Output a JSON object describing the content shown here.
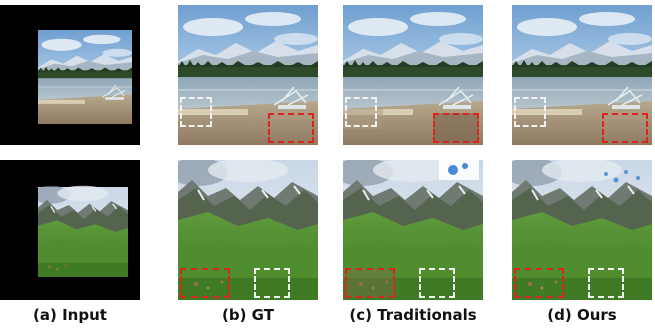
{
  "captions": {
    "input": "(a) Input",
    "gt": "(b) GT",
    "traditionals": "(c) Traditionals",
    "ours": "(d) Ours"
  },
  "colors": {
    "highlight_red": "#e0221c",
    "highlight_white": "#f2f2f2",
    "mask_black": "#000000"
  },
  "rows": [
    {
      "scene": "mountain lake with shore and boat"
    },
    {
      "scene": "green mountain valley"
    }
  ]
}
